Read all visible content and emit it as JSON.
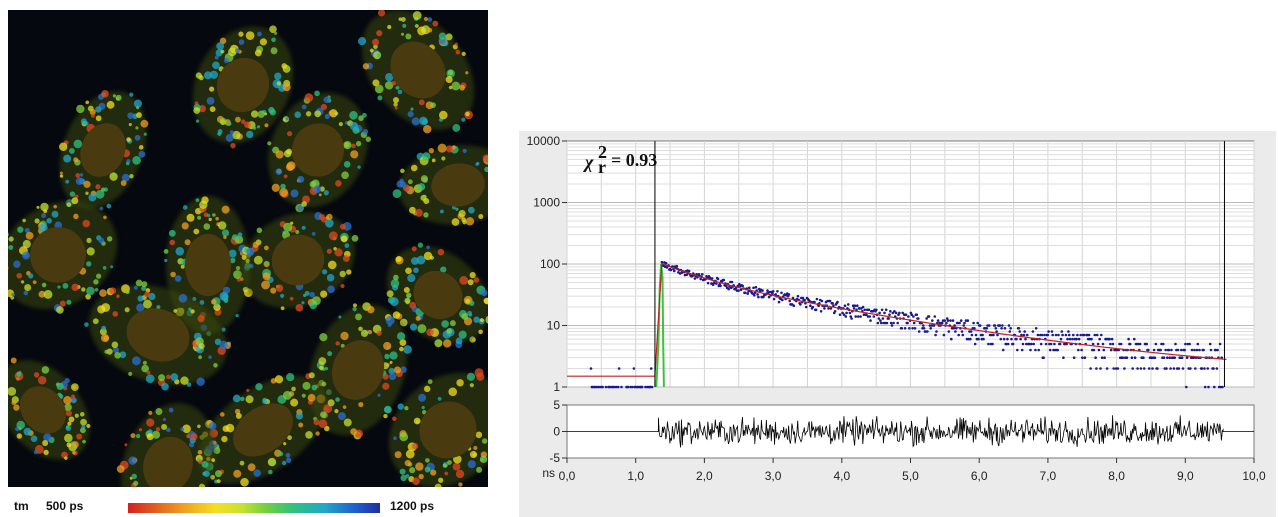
{
  "flim_image": {
    "description_colors": {
      "background": "#05080f",
      "nucleus": "#4a3a10",
      "short_tm": "#e04020",
      "long_tm": "#2060d0"
    },
    "cells": [
      {
        "cx": 235,
        "cy": 75
      },
      {
        "cx": 95,
        "cy": 140
      },
      {
        "cx": 410,
        "cy": 60
      },
      {
        "cx": 310,
        "cy": 140
      },
      {
        "cx": 450,
        "cy": 175
      },
      {
        "cx": 50,
        "cy": 245
      },
      {
        "cx": 200,
        "cy": 255
      },
      {
        "cx": 290,
        "cy": 250
      },
      {
        "cx": 430,
        "cy": 285
      },
      {
        "cx": 150,
        "cy": 325
      },
      {
        "cx": 35,
        "cy": 400
      },
      {
        "cx": 255,
        "cy": 420
      },
      {
        "cx": 440,
        "cy": 420
      },
      {
        "cx": 160,
        "cy": 455
      },
      {
        "cx": 350,
        "cy": 360
      }
    ]
  },
  "colorbar": {
    "label": "tm",
    "min_label": "500 ps",
    "max_label": "1200 ps",
    "colors": [
      "#d42020",
      "#f0a020",
      "#f3e020",
      "#6fd040",
      "#20a8c8",
      "#1c2fa0"
    ]
  },
  "chart_data": {
    "type": "scatter",
    "title": "",
    "chi_label": "χ",
    "chi_sup": "2",
    "chi_sub": "r",
    "chi_value": "=  0.93",
    "x_unit_label": "ns",
    "xlim": [
      0,
      10
    ],
    "x_ticks": [
      0,
      1,
      2,
      3,
      4,
      5,
      6,
      7,
      8,
      9,
      10
    ],
    "x_tick_labels": [
      "0,0",
      "1,0",
      "2,0",
      "3,0",
      "4,0",
      "5,0",
      "6,0",
      "7,0",
      "8,0",
      "9,0",
      "10,0"
    ],
    "y_scale": "log",
    "ylim": [
      1,
      10000
    ],
    "y_ticks": [
      1,
      10,
      100,
      1000,
      10000
    ],
    "y_tick_labels": [
      "1",
      "10",
      "100",
      "1000",
      "10000"
    ],
    "residual_ylim": [
      -5,
      5
    ],
    "residual_ticks": [
      5,
      0,
      -5
    ],
    "residual_tick_labels": [
      "5",
      "0",
      "-5"
    ],
    "cursor_lines_x": [
      1.28,
      9.57
    ],
    "series": [
      {
        "color": "#1a1a8c",
        "kind": "points"
      },
      {
        "color": "#c02020",
        "kind": "fit"
      },
      {
        "color": "#40c040",
        "kind": "irf"
      },
      {
        "color": "#000000",
        "kind": "residuals"
      }
    ],
    "decay": {
      "x0": 1.38,
      "peak": 100,
      "tau_fast": 0.6,
      "amp_fast": 45,
      "tau_slow": 2.2,
      "amp_slow": 55,
      "background": 1.5
    },
    "grid": true
  }
}
